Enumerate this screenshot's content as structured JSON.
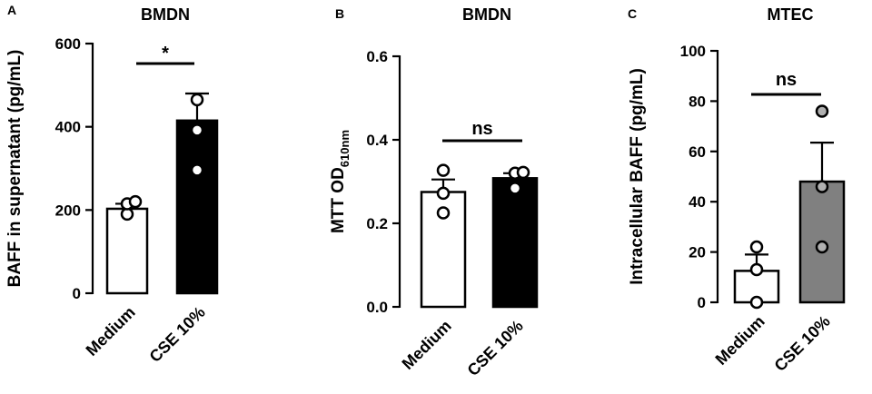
{
  "chart_data": [
    {
      "type": "bar",
      "panel": "A",
      "title": "BMDN",
      "ylabel": "BAFF in supernatant (pg/mL)",
      "ylabel_sub": "",
      "categories": [
        "Medium",
        "CSE 10%"
      ],
      "values": [
        203,
        415
      ],
      "errors": [
        12,
        65
      ],
      "points": [
        [
          190,
          215,
          220
        ],
        [
          296,
          392,
          465
        ]
      ],
      "ylim": [
        0,
        600
      ],
      "yticks": [
        "0",
        "200",
        "400",
        "600"
      ],
      "bar_colors": [
        "#ffffff",
        "#000000"
      ],
      "point_colors": [
        "#ffffff",
        "#ffffff"
      ],
      "significance": "*"
    },
    {
      "type": "bar",
      "panel": "B",
      "title": "BMDN",
      "ylabel": "MTT OD",
      "ylabel_sub": "610nm",
      "categories": [
        "Medium",
        "CSE 10%"
      ],
      "values": [
        0.275,
        0.308
      ],
      "errors": [
        0.03,
        0.012
      ],
      "points": [
        [
          0.225,
          0.272,
          0.327
        ],
        [
          0.284,
          0.32,
          0.322
        ]
      ],
      "ylim": [
        0,
        0.6
      ],
      "yticks": [
        "0.0",
        "0.2",
        "0.4",
        "0.6"
      ],
      "bar_colors": [
        "#ffffff",
        "#000000"
      ],
      "point_colors": [
        "#ffffff",
        "#ffffff"
      ],
      "significance": "ns"
    },
    {
      "type": "bar",
      "panel": "C",
      "title": "MTEC",
      "ylabel": "Intracellular BAFF (pg/mL)",
      "ylabel_sub": "",
      "categories": [
        "Medium",
        "CSE 10%"
      ],
      "values": [
        12.5,
        48
      ],
      "errors": [
        6.5,
        15.5
      ],
      "points": [
        [
          0,
          13,
          22
        ],
        [
          22,
          46,
          76
        ]
      ],
      "ylim": [
        0,
        100
      ],
      "yticks": [
        "0",
        "20",
        "40",
        "60",
        "80",
        "100"
      ],
      "bar_colors": [
        "#ffffff",
        "#808080"
      ],
      "point_colors": [
        "#ffffff",
        "#b0b0b0"
      ],
      "significance": "ns"
    }
  ]
}
